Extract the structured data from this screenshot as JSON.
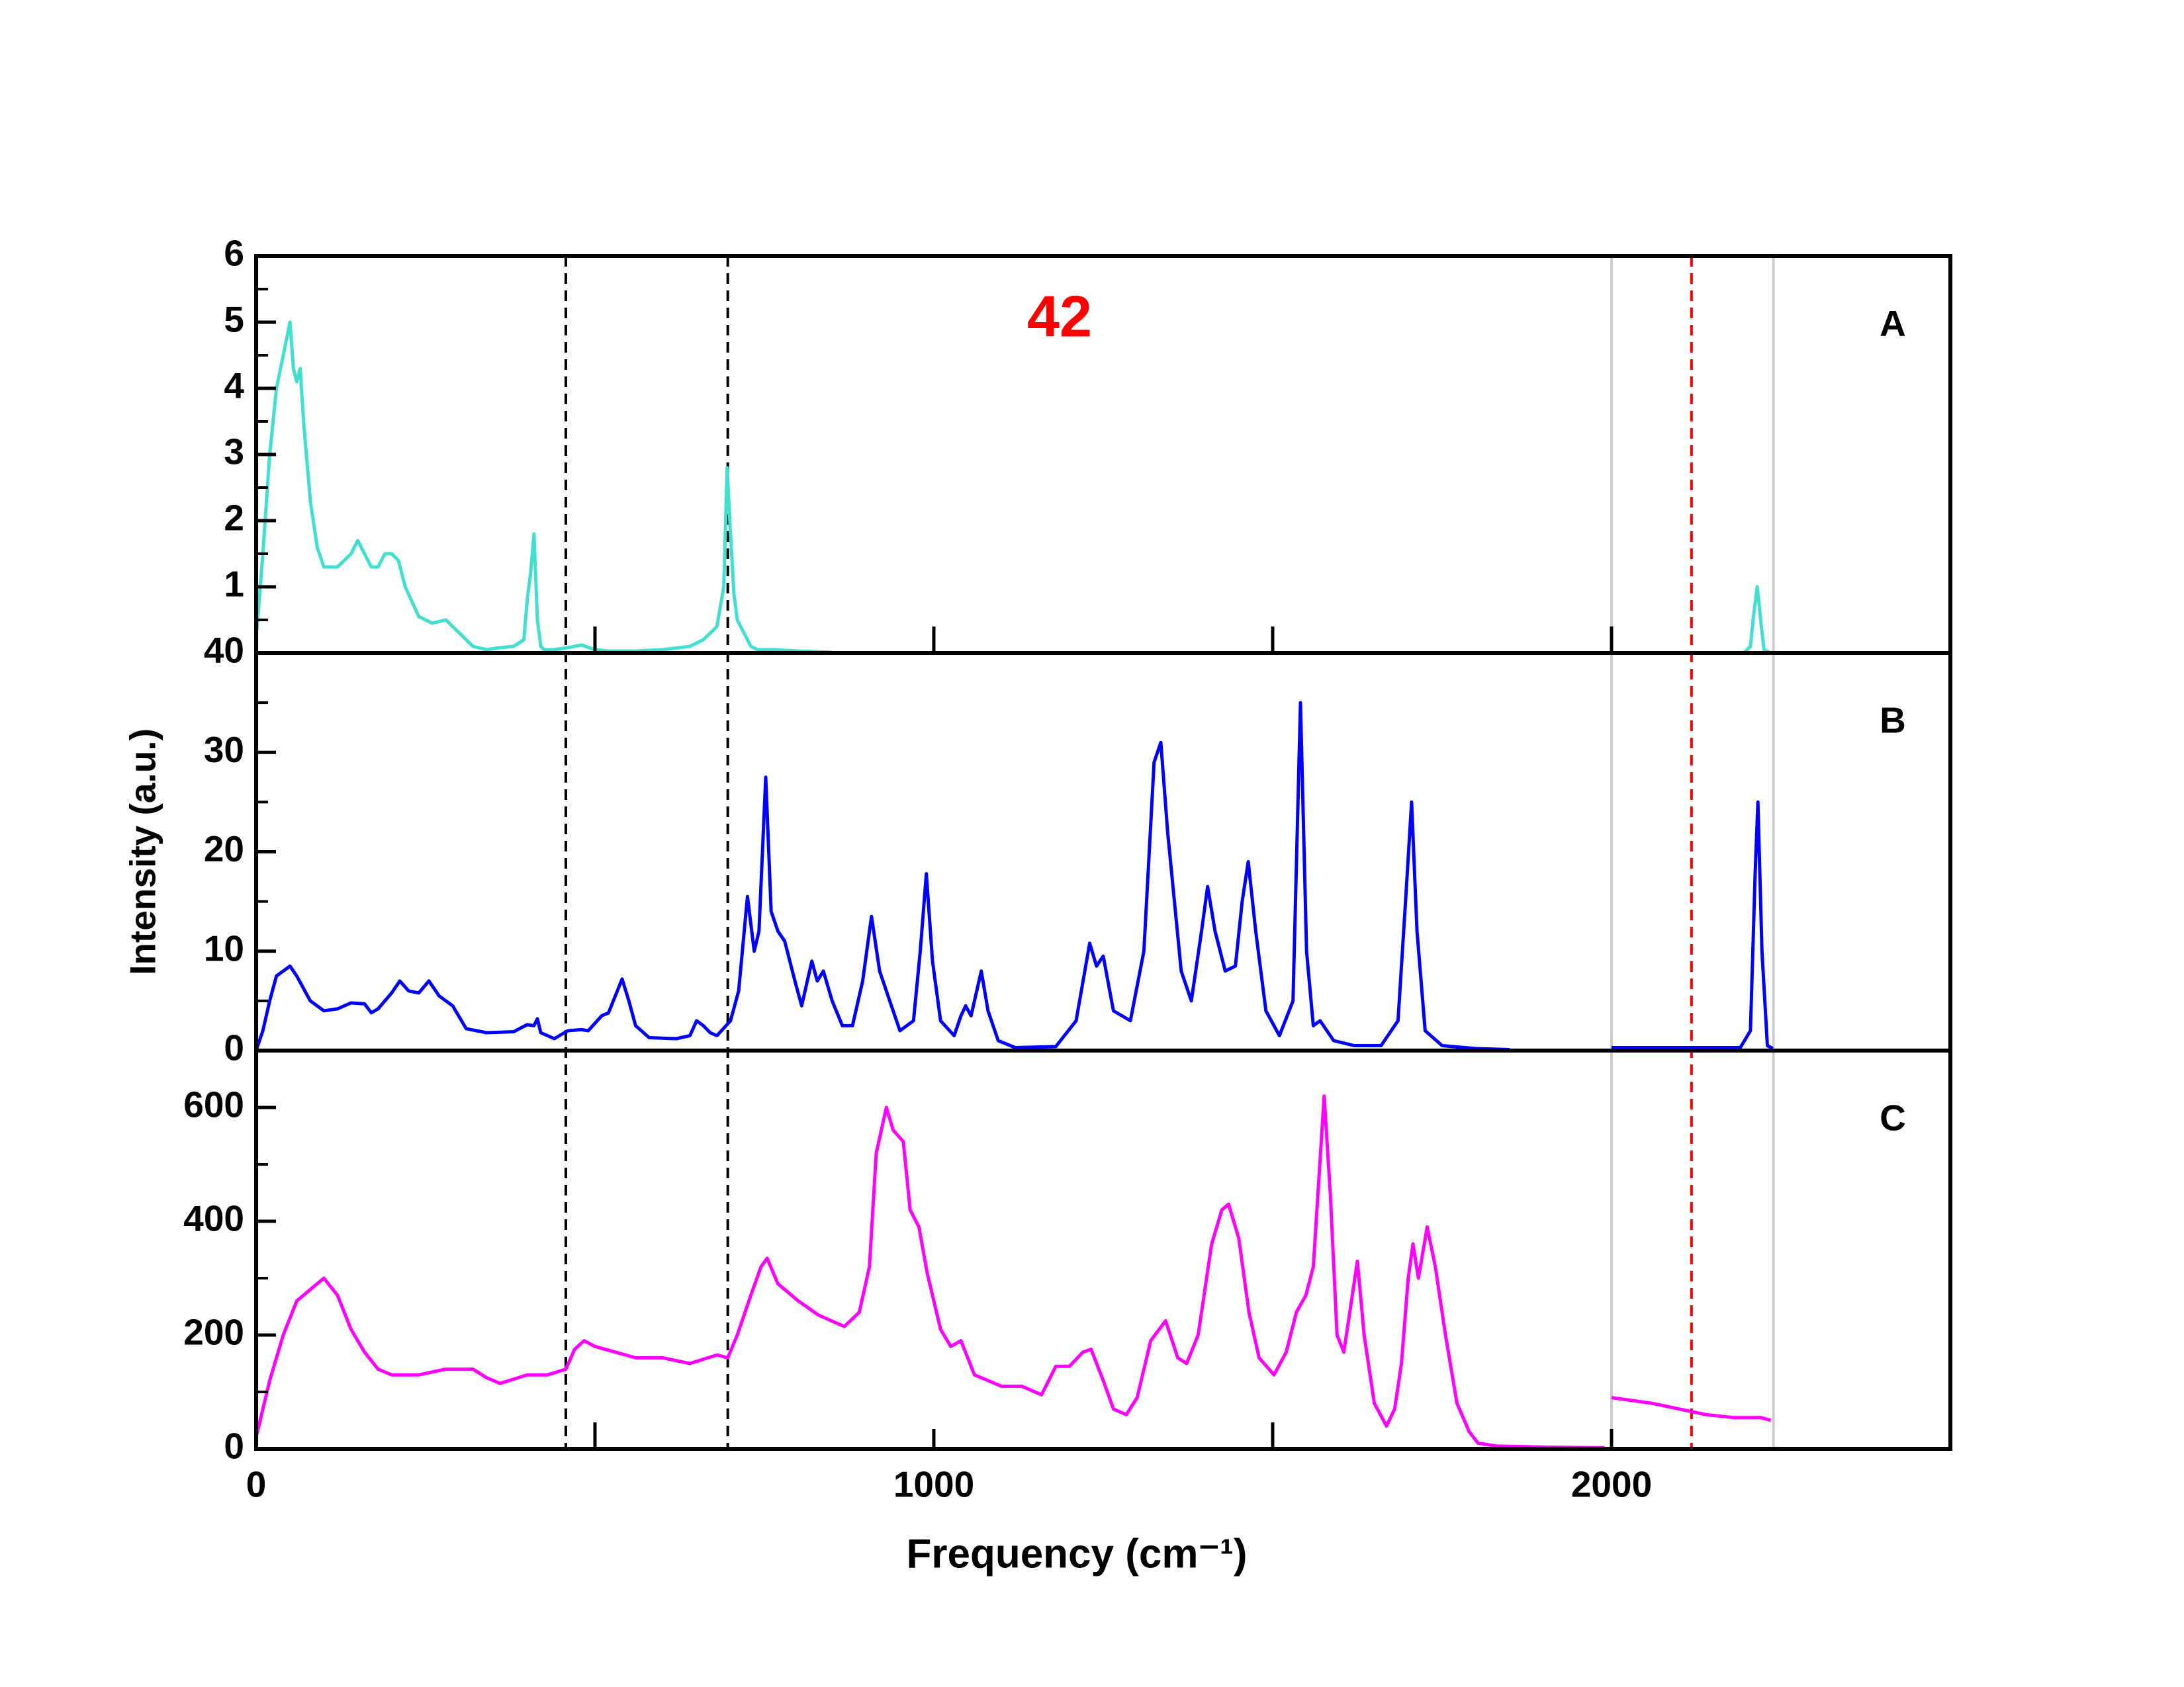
{
  "chart_data": [
    {
      "type": "line",
      "label": "A",
      "annotation": "42",
      "annotation_color": "#ff0000",
      "xlim": [
        0,
        2500
      ],
      "xtick_marks": [
        500,
        1000,
        1500,
        2000
      ],
      "ylim": [
        0,
        6
      ],
      "yticks": [
        1,
        2,
        3,
        4,
        5,
        6
      ],
      "yminor": [
        0.5,
        1.5,
        2.5,
        3.5,
        4.5,
        5.5
      ],
      "reference_lines": [
        {
          "value": 457,
          "color": "#000000",
          "dashed": true
        },
        {
          "value": 696,
          "color": "#000000",
          "dashed": true
        },
        {
          "value": 2000,
          "color": "#cccccc",
          "dashed": false
        },
        {
          "value": 2118,
          "color": "#ff0000",
          "dashed": true
        },
        {
          "value": 2239,
          "color": "#cccccc",
          "dashed": false
        }
      ],
      "x": [
        0,
        10,
        20,
        30,
        40,
        50,
        55,
        60,
        65,
        70,
        80,
        90,
        100,
        120,
        140,
        150,
        160,
        170,
        180,
        190,
        200,
        210,
        220,
        240,
        260,
        280,
        300,
        320,
        340,
        360,
        380,
        395,
        400,
        405,
        410,
        415,
        420,
        425,
        440,
        460,
        480,
        500,
        520,
        540,
        560,
        600,
        640,
        660,
        680,
        690,
        695,
        700,
        705,
        710,
        720,
        730,
        740,
        760,
        800,
        850,
        null,
        2195,
        2205,
        2210,
        2215,
        2220,
        2225,
        2235
      ],
      "series": [
        {
          "color": "#40e0d0",
          "values": [
            0.2,
            1.5,
            3.0,
            4.0,
            4.5,
            5.0,
            4.3,
            4.1,
            4.3,
            3.5,
            2.3,
            1.6,
            1.3,
            1.3,
            1.5,
            1.7,
            1.5,
            1.3,
            1.3,
            1.5,
            1.5,
            1.4,
            1.0,
            0.55,
            0.45,
            0.5,
            0.3,
            0.1,
            0.05,
            0.08,
            0.1,
            0.2,
            0.8,
            1.2,
            1.8,
            0.5,
            0.1,
            0.05,
            0.05,
            0.08,
            0.12,
            0.05,
            0.03,
            0.03,
            0.03,
            0.05,
            0.1,
            0.2,
            0.4,
            1.0,
            2.8,
            1.8,
            0.9,
            0.5,
            0.3,
            0.1,
            0.05,
            0.05,
            0.03,
            0.01,
            null,
            0,
            0.1,
            0.6,
            1.0,
            0.5,
            0.05,
            0
          ]
        }
      ]
    },
    {
      "type": "line",
      "label": "B",
      "y_label": "Intensity (a.u.)",
      "xlim": [
        0,
        2500
      ],
      "ylim": [
        0,
        40
      ],
      "yticks": [
        0,
        10,
        20,
        30,
        40
      ],
      "yminor": [
        5,
        15,
        25,
        35
      ],
      "x": [
        0,
        10,
        20,
        30,
        50,
        60,
        80,
        100,
        120,
        140,
        160,
        170,
        180,
        200,
        212,
        225,
        240,
        255,
        270,
        290,
        310,
        340,
        380,
        400,
        410,
        415,
        420,
        440,
        460,
        480,
        490,
        510,
        520,
        530,
        540,
        550,
        560,
        580,
        620,
        640,
        650,
        660,
        670,
        680,
        700,
        712,
        725,
        735,
        742,
        752,
        760,
        770,
        780,
        795,
        805,
        820,
        828,
        837,
        850,
        865,
        880,
        895,
        908,
        920,
        935,
        950,
        970,
        980,
        989,
        998,
        1010,
        1030,
        1040,
        1047,
        1055,
        1070,
        1080,
        1095,
        1120,
        1180,
        1210,
        1230,
        1240,
        1250,
        1265,
        1290,
        1310,
        1325,
        1335,
        1345,
        1365,
        1380,
        1395,
        1404,
        1415,
        1430,
        1445,
        1455,
        1464,
        1475,
        1490,
        1510,
        1530,
        1541,
        1550,
        1560,
        1570,
        1580,
        1590,
        1620,
        1660,
        1685,
        1697,
        1705,
        1713,
        1725,
        1750,
        1800,
        1850,
        null,
        2000,
        2100,
        2190,
        2205,
        2212,
        2216,
        2222,
        2230,
        2238
      ],
      "series": [
        {
          "color": "#0000ff",
          "values": [
            0,
            2,
            5,
            7.5,
            8.5,
            7.5,
            5,
            4,
            4.2,
            4.8,
            4.7,
            3.8,
            4.2,
            5.8,
            7,
            6,
            5.8,
            7,
            5.5,
            4.5,
            2.2,
            1.8,
            1.9,
            2.6,
            2.5,
            3.2,
            1.8,
            1.2,
            2,
            2.1,
            2,
            3.5,
            3.8,
            5.5,
            7.2,
            5,
            2.5,
            1.3,
            1.2,
            1.5,
            3,
            2.5,
            1.8,
            1.5,
            3,
            6,
            15.5,
            10,
            12,
            27.5,
            14,
            12,
            11,
            7,
            4.5,
            9,
            7,
            8,
            5,
            2.5,
            2.5,
            7,
            13.5,
            8,
            5,
            2,
            3,
            10,
            17.8,
            9,
            3,
            1.5,
            3.5,
            4.5,
            3.5,
            8,
            4,
            1,
            0.3,
            0.4,
            3,
            10.8,
            8.5,
            9.5,
            4,
            3,
            10,
            29,
            31,
            22,
            8,
            5,
            12,
            16.5,
            12,
            8,
            8.5,
            15,
            19,
            12,
            4,
            1.5,
            5,
            35,
            10,
            2.5,
            3,
            2,
            1,
            0.5,
            0.5,
            3,
            16,
            25,
            12,
            2,
            0.5,
            0.2,
            0.1,
            null,
            0.3,
            0.3,
            0.3,
            2,
            18,
            25,
            10,
            0.5,
            0.2
          ]
        }
      ]
    },
    {
      "type": "line",
      "label": "C",
      "x_label": "Frequency (cm⁻¹)",
      "xlim": [
        0,
        2500
      ],
      "xticks": [
        0,
        1000,
        2000
      ],
      "xtick_marks": [
        500,
        1500
      ],
      "ylim": [
        0,
        700
      ],
      "yticks": [
        0,
        200,
        400,
        600
      ],
      "yminor": [
        100,
        300,
        500
      ],
      "x": [
        0,
        10,
        20,
        40,
        60,
        80,
        100,
        120,
        140,
        160,
        180,
        200,
        240,
        280,
        320,
        340,
        360,
        400,
        430,
        457,
        470,
        484,
        500,
        530,
        560,
        600,
        640,
        680,
        696,
        710,
        730,
        745,
        754,
        770,
        800,
        830,
        868,
        890,
        905,
        915,
        930,
        940,
        955,
        965,
        978,
        990,
        1010,
        1025,
        1040,
        1060,
        1080,
        1100,
        1130,
        1159,
        1180,
        1200,
        1220,
        1232,
        1250,
        1265,
        1284,
        1300,
        1320,
        1342,
        1360,
        1373,
        1390,
        1410,
        1425,
        1435,
        1450,
        1465,
        1480,
        1502,
        1520,
        1535,
        1549,
        1560,
        1576,
        1585,
        1595,
        1605,
        1615,
        1625,
        1635,
        1650,
        1668,
        1680,
        1690,
        1700,
        1707,
        1715,
        1728,
        1740,
        1755,
        1772,
        1790,
        1803,
        1830,
        1900,
        1990,
        null,
        2000,
        2030,
        2060,
        2100,
        2140,
        2180,
        2220,
        2235
      ],
      "series": [
        {
          "color": "#ff00ff",
          "values": [
            20,
            70,
            120,
            200,
            260,
            280,
            300,
            270,
            210,
            170,
            140,
            130,
            130,
            140,
            140,
            125,
            115,
            130,
            130,
            140,
            175,
            190,
            180,
            170,
            160,
            160,
            150,
            165,
            160,
            200,
            270,
            320,
            335,
            290,
            260,
            235,
            215,
            240,
            320,
            520,
            600,
            560,
            540,
            420,
            390,
            310,
            210,
            180,
            190,
            130,
            120,
            110,
            110,
            95,
            145,
            145,
            170,
            175,
            120,
            70,
            60,
            90,
            190,
            225,
            160,
            150,
            200,
            360,
            420,
            430,
            370,
            240,
            160,
            130,
            170,
            240,
            270,
            320,
            620,
            450,
            200,
            170,
            250,
            330,
            200,
            80,
            40,
            70,
            150,
            300,
            360,
            300,
            390,
            320,
            200,
            80,
            30,
            10,
            5,
            3,
            2,
            null,
            90,
            85,
            80,
            70,
            60,
            55,
            55,
            50
          ]
        }
      ]
    }
  ]
}
